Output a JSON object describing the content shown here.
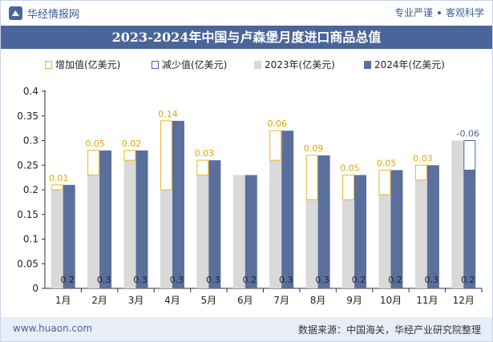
{
  "header": {
    "brand": "华经情报网",
    "tag1": "专业严谨",
    "tag2": "客观科学"
  },
  "title": "2023-2024年中国与卢森堡月度进口商品总值",
  "legend": {
    "increase": "增加值(亿美元)",
    "decrease": "减少值(亿美元)",
    "y2023": "2023年(亿美元)",
    "y2024": "2024年(亿美元)"
  },
  "colors": {
    "y2023": "#d9d9d9",
    "y2024": "#5b6f9d",
    "increase": "#f0b429",
    "decrease": "#4a6599",
    "title_bg": "#4a6599"
  },
  "footer": {
    "site": "www.huaon.com",
    "source": "数据来源：中国海关，华经产业研究院整理"
  },
  "chart_data": {
    "type": "bar",
    "categories": [
      "1月",
      "2月",
      "3月",
      "4月",
      "5月",
      "6月",
      "7月",
      "8月",
      "9月",
      "10月",
      "11月",
      "12月"
    ],
    "series": [
      {
        "name": "2023年(亿美元)",
        "values": [
          0.2,
          0.23,
          0.26,
          0.2,
          0.23,
          0.23,
          0.26,
          0.18,
          0.18,
          0.19,
          0.22,
          0.3
        ]
      },
      {
        "name": "2024年(亿美元)",
        "values": [
          0.21,
          0.28,
          0.28,
          0.34,
          0.26,
          0.23,
          0.32,
          0.27,
          0.23,
          0.24,
          0.25,
          0.24
        ]
      }
    ],
    "change_labels": [
      "0.01",
      "0.05",
      "0.02",
      "0.14",
      "0.03",
      "",
      "0.06",
      "0.09",
      "0.05",
      "0.05",
      "0.03",
      "-0.06"
    ],
    "bottom_labels": [
      "0.2",
      "0.3",
      "0.3",
      "0.3",
      "0.3",
      "0.2",
      "0.3",
      "0.3",
      "0.2",
      "0.2",
      "0.3",
      "0.2"
    ],
    "ylim": [
      0,
      0.4
    ],
    "yticks": [
      "0",
      "0.05",
      "0.1",
      "0.15",
      "0.2",
      "0.25",
      "0.3",
      "0.35",
      "0.4"
    ],
    "grid": false,
    "legend_position": "top"
  }
}
